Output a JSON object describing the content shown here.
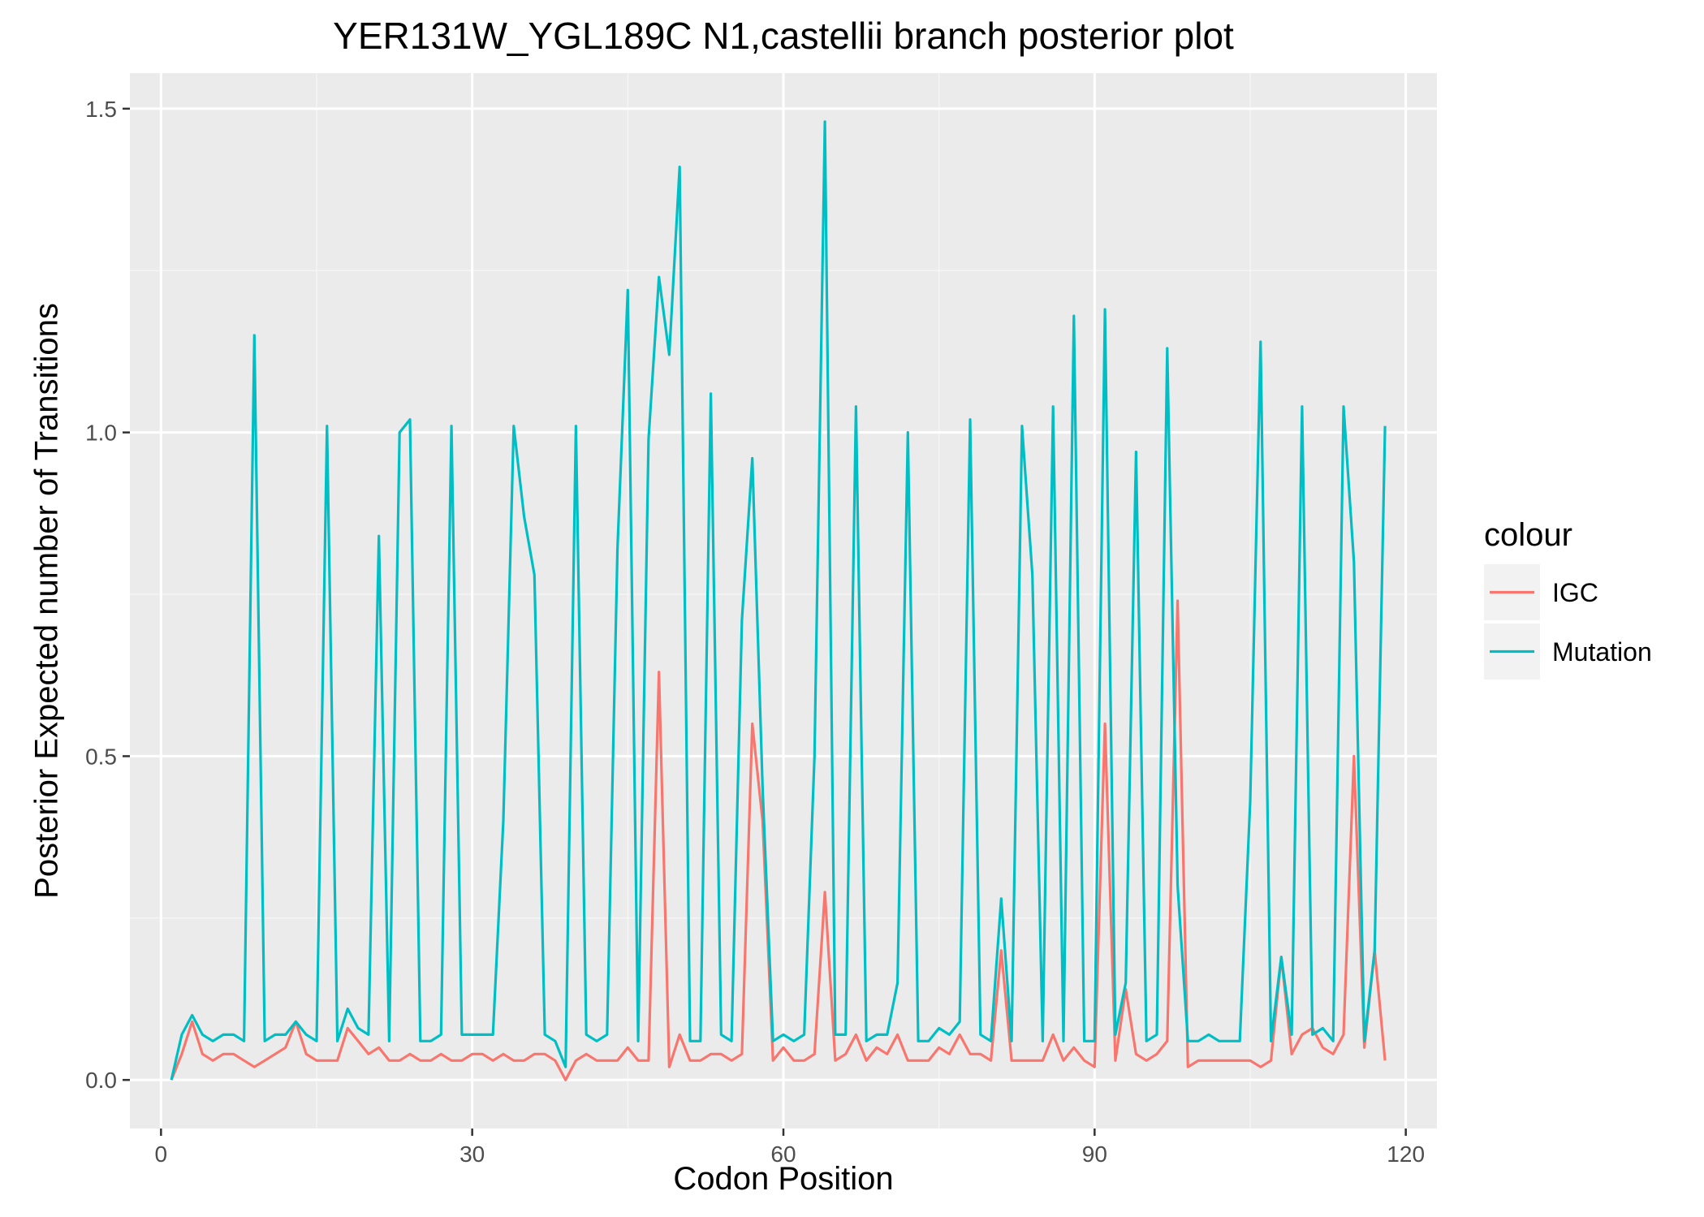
{
  "chart_data": {
    "type": "line",
    "title": "YER131W_YGL189C N1,castellii branch posterior plot",
    "xlabel": "Codon Position",
    "ylabel": "Posterior Expected number of Transitions",
    "xlim": [
      -3,
      123
    ],
    "ylim": [
      -0.075,
      1.555
    ],
    "xticks": [
      0,
      30,
      60,
      90,
      120
    ],
    "yticks": [
      0.0,
      0.5,
      1.0,
      1.5
    ],
    "ytick_labels": [
      "0.0",
      "0.5",
      "1.0",
      "1.5"
    ],
    "grid": true,
    "legend": {
      "title": "colour",
      "placement": "right"
    },
    "x": [
      1,
      2,
      3,
      4,
      5,
      6,
      7,
      8,
      9,
      10,
      11,
      12,
      13,
      14,
      15,
      16,
      17,
      18,
      19,
      20,
      21,
      22,
      23,
      24,
      25,
      26,
      27,
      28,
      29,
      30,
      31,
      32,
      33,
      34,
      35,
      36,
      37,
      38,
      39,
      40,
      41,
      42,
      43,
      44,
      45,
      46,
      47,
      48,
      49,
      50,
      51,
      52,
      53,
      54,
      55,
      56,
      57,
      58,
      59,
      60,
      61,
      62,
      63,
      64,
      65,
      66,
      67,
      68,
      69,
      70,
      71,
      72,
      73,
      74,
      75,
      76,
      77,
      78,
      79,
      80,
      81,
      82,
      83,
      84,
      85,
      86,
      87,
      88,
      89,
      90,
      91,
      92,
      93,
      94,
      95,
      96,
      97,
      98,
      99,
      100,
      101,
      102,
      103,
      104,
      105,
      106,
      107,
      108,
      109,
      110,
      111,
      112,
      113,
      114,
      115,
      116,
      117,
      118
    ],
    "series": [
      {
        "name": "IGC",
        "color": "#F8766D",
        "values": [
          0.0,
          0.04,
          0.09,
          0.04,
          0.03,
          0.04,
          0.04,
          0.03,
          0.02,
          0.03,
          0.04,
          0.05,
          0.09,
          0.04,
          0.03,
          0.03,
          0.03,
          0.08,
          0.06,
          0.04,
          0.05,
          0.03,
          0.03,
          0.04,
          0.03,
          0.03,
          0.04,
          0.03,
          0.03,
          0.04,
          0.04,
          0.03,
          0.04,
          0.03,
          0.03,
          0.04,
          0.04,
          0.03,
          0.0,
          0.03,
          0.04,
          0.03,
          0.03,
          0.03,
          0.05,
          0.03,
          0.03,
          0.63,
          0.02,
          0.07,
          0.03,
          0.03,
          0.04,
          0.04,
          0.03,
          0.04,
          0.55,
          0.4,
          0.03,
          0.05,
          0.03,
          0.03,
          0.04,
          0.29,
          0.03,
          0.04,
          0.07,
          0.03,
          0.05,
          0.04,
          0.07,
          0.03,
          0.03,
          0.03,
          0.05,
          0.04,
          0.07,
          0.04,
          0.04,
          0.03,
          0.2,
          0.03,
          0.03,
          0.03,
          0.03,
          0.07,
          0.03,
          0.05,
          0.03,
          0.02,
          0.55,
          0.03,
          0.14,
          0.04,
          0.03,
          0.04,
          0.06,
          0.74,
          0.02,
          0.03,
          0.03,
          0.03,
          0.03,
          0.03,
          0.03,
          0.02,
          0.03,
          0.19,
          0.04,
          0.07,
          0.08,
          0.05,
          0.04,
          0.07,
          0.5,
          0.05,
          0.2,
          0.03
        ]
      },
      {
        "name": "Mutation",
        "color": "#00BFC4",
        "values": [
          0.0,
          0.07,
          0.1,
          0.07,
          0.06,
          0.07,
          0.07,
          0.06,
          1.15,
          0.06,
          0.07,
          0.07,
          0.09,
          0.07,
          0.06,
          1.01,
          0.06,
          0.11,
          0.08,
          0.07,
          0.84,
          0.06,
          1.0,
          1.02,
          0.06,
          0.06,
          0.07,
          1.01,
          0.07,
          0.07,
          0.07,
          0.07,
          0.4,
          1.01,
          0.87,
          0.78,
          0.07,
          0.06,
          0.02,
          1.01,
          0.07,
          0.06,
          0.07,
          0.82,
          1.22,
          0.06,
          0.99,
          1.24,
          1.12,
          1.41,
          0.06,
          0.06,
          1.06,
          0.07,
          0.06,
          0.71,
          0.96,
          0.45,
          0.06,
          0.07,
          0.06,
          0.07,
          0.5,
          1.48,
          0.07,
          0.07,
          1.04,
          0.06,
          0.07,
          0.07,
          0.15,
          1.0,
          0.06,
          0.06,
          0.08,
          0.07,
          0.09,
          1.02,
          0.07,
          0.06,
          0.28,
          0.06,
          1.01,
          0.78,
          0.06,
          1.04,
          0.06,
          1.18,
          0.06,
          0.06,
          1.19,
          0.07,
          0.15,
          0.97,
          0.06,
          0.07,
          1.13,
          0.3,
          0.06,
          0.06,
          0.07,
          0.06,
          0.06,
          0.06,
          0.43,
          1.14,
          0.06,
          0.19,
          0.07,
          1.04,
          0.07,
          0.08,
          0.06,
          1.04,
          0.8,
          0.06,
          0.2,
          1.01
        ]
      }
    ]
  }
}
